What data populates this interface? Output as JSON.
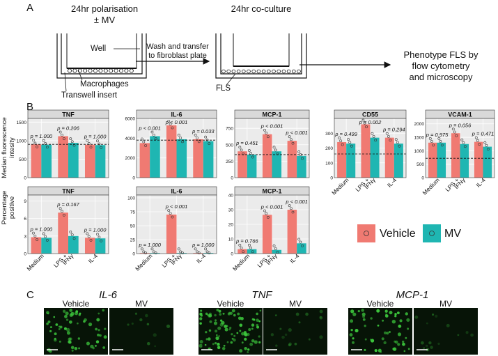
{
  "panelA": {
    "letter": "A",
    "polarisation_title": "24hr polarisation",
    "polarisation_sub": "± MV",
    "coculture_title": "24hr co-culture",
    "label_well": "Well",
    "label_macrophages": "Macrophages",
    "label_insert": "Transwell insert",
    "label_fls": "FLS",
    "arrow1_line1": "Wash and transfer",
    "arrow1_line2": "to fibroblast plate",
    "phenotype_line1": "Phenotype FLS by",
    "phenotype_line2": "flow cytometry",
    "phenotype_line3": "and microscopy"
  },
  "panelB": {
    "letter": "B",
    "ylabel_top_line1": "Median fluorescence",
    "ylabel_top_line2": "intesity",
    "ylabel_bottom_line1": "Percentage",
    "ylabel_bottom_line2": "positive",
    "xcat": [
      "Medium",
      "LPS +",
      "IFNγ",
      "IL-4"
    ],
    "legend": {
      "vehicle": "Vehicle",
      "mv": "MV"
    },
    "colors": {
      "vehicle": "#f07a72",
      "mv": "#1fb6b2",
      "strip": "#d9d9d9",
      "panel": "#ebebeb"
    }
  },
  "panelC": {
    "letter": "C",
    "genes": [
      "IL-6",
      "TNF",
      "MCP-1"
    ],
    "vehicle": "Vehicle",
    "mv": "MV",
    "scale": "100µm"
  },
  "chart_data": [
    {
      "type": "bar",
      "title": "TNF",
      "ylabel": "Median fluorescence intesity",
      "ylim": [
        0,
        1600
      ],
      "yticks": [
        "0",
        "500",
        "1000",
        "1500"
      ],
      "categories": [
        "Medium",
        "LPS + IFNγ",
        "IL-4"
      ],
      "series": [
        {
          "name": "Vehicle",
          "values": [
            900,
            1120,
            890
          ]
        },
        {
          "name": "MV",
          "values": [
            890,
            940,
            880
          ]
        }
      ],
      "pvalues": [
        "p = 1.000",
        "p = 0.206",
        "p = 1.000"
      ],
      "reference_line": 900
    },
    {
      "type": "bar",
      "title": "IL-6",
      "ylabel": "Median fluorescence intesity",
      "ylim": [
        0,
        6000
      ],
      "yticks": [
        "0",
        "2000",
        "4000",
        "6000"
      ],
      "categories": [
        "Medium",
        "LPS + IFNγ",
        "IL-4"
      ],
      "series": [
        {
          "name": "Vehicle",
          "values": [
            3500,
            5300,
            3900
          ]
        },
        {
          "name": "MV",
          "values": [
            4200,
            3900,
            3700
          ]
        }
      ],
      "pvalues": [
        "p < 0.001",
        "p < 0.001",
        "p = 0.033"
      ],
      "reference_line": 3800
    },
    {
      "type": "bar",
      "title": "MCP-1",
      "ylabel": "Median fluorescence intesity",
      "ylim": [
        0,
        900
      ],
      "yticks": [
        "0",
        "250",
        "500",
        "750"
      ],
      "categories": [
        "Medium",
        "LPS + IFNγ",
        "IL-4"
      ],
      "series": [
        {
          "name": "Vehicle",
          "values": [
            400,
            660,
            560
          ]
        },
        {
          "name": "MV",
          "values": [
            350,
            400,
            330
          ]
        }
      ],
      "pvalues": [
        "p = 0.451",
        "p < 0.001",
        "p < 0.001"
      ],
      "reference_line": 350
    },
    {
      "type": "bar",
      "title": "CD55",
      "ylabel": "Median fluorescence intesity",
      "ylim": [
        0,
        400
      ],
      "yticks": [
        "0",
        "100",
        "200",
        "300"
      ],
      "categories": [
        "Medium",
        "LPS + IFNγ",
        "IL-4"
      ],
      "series": [
        {
          "name": "Vehicle",
          "values": [
            240,
            360,
            270
          ]
        },
        {
          "name": "MV",
          "values": [
            230,
            270,
            230
          ]
        }
      ],
      "pvalues": [
        "p = 0.499",
        "p = 0.002",
        "p = 0.294"
      ],
      "reference_line": 160
    },
    {
      "type": "bar",
      "title": "VCAM-1",
      "ylabel": "Median fluorescence intesity",
      "ylim": [
        0,
        2200
      ],
      "yticks": [
        "0",
        "500",
        "1000",
        "1500",
        "2000"
      ],
      "categories": [
        "Medium",
        "LPS + IFNγ",
        "IL-4"
      ],
      "series": [
        {
          "name": "Vehicle",
          "values": [
            1300,
            1650,
            1330
          ]
        },
        {
          "name": "MV",
          "values": [
            1300,
            1250,
            1150
          ]
        }
      ],
      "pvalues": [
        "p = 0.975",
        "p = 0.056",
        "p = 0.471"
      ],
      "reference_line": 720
    },
    {
      "type": "bar",
      "title": "TNF",
      "ylabel": "Percentage positive",
      "ylim": [
        0,
        10
      ],
      "yticks": [
        "0",
        "3",
        "6",
        "9"
      ],
      "categories": [
        "Medium",
        "LPS + IFNγ",
        "IL-4"
      ],
      "series": [
        {
          "name": "Vehicle",
          "values": [
            2.8,
            7.0,
            2.7
          ]
        },
        {
          "name": "MV",
          "values": [
            2.7,
            3.0,
            2.6
          ]
        }
      ],
      "pvalues": [
        "p = 1.000",
        "p = 0.167",
        "p = 1.000"
      ]
    },
    {
      "type": "bar",
      "title": "IL-6",
      "ylabel": "Percentage positive",
      "ylim": [
        0,
        105
      ],
      "yticks": [
        "0",
        "25",
        "50",
        "75",
        "100"
      ],
      "categories": [
        "Medium",
        "LPS + IFNγ",
        "IL-4"
      ],
      "series": [
        {
          "name": "Vehicle",
          "values": [
            1,
            70,
            1
          ]
        },
        {
          "name": "MV",
          "values": [
            1,
            1,
            1
          ]
        }
      ],
      "pvalues": [
        "p = 1.000",
        "p < 0.001",
        "p = 1.000"
      ]
    },
    {
      "type": "bar",
      "title": "MCP-1",
      "ylabel": "Percentage positive",
      "ylim": [
        0,
        40
      ],
      "yticks": [
        "0",
        "10",
        "20",
        "30",
        "40"
      ],
      "categories": [
        "Medium",
        "LPS + IFNγ",
        "IL-4"
      ],
      "series": [
        {
          "name": "Vehicle",
          "values": [
            3,
            26.5,
            30
          ]
        },
        {
          "name": "MV",
          "values": [
            3,
            2.5,
            7
          ]
        }
      ],
      "pvalues": [
        "p = 0.766",
        "p < 0.001",
        "p < 0.001"
      ]
    }
  ]
}
